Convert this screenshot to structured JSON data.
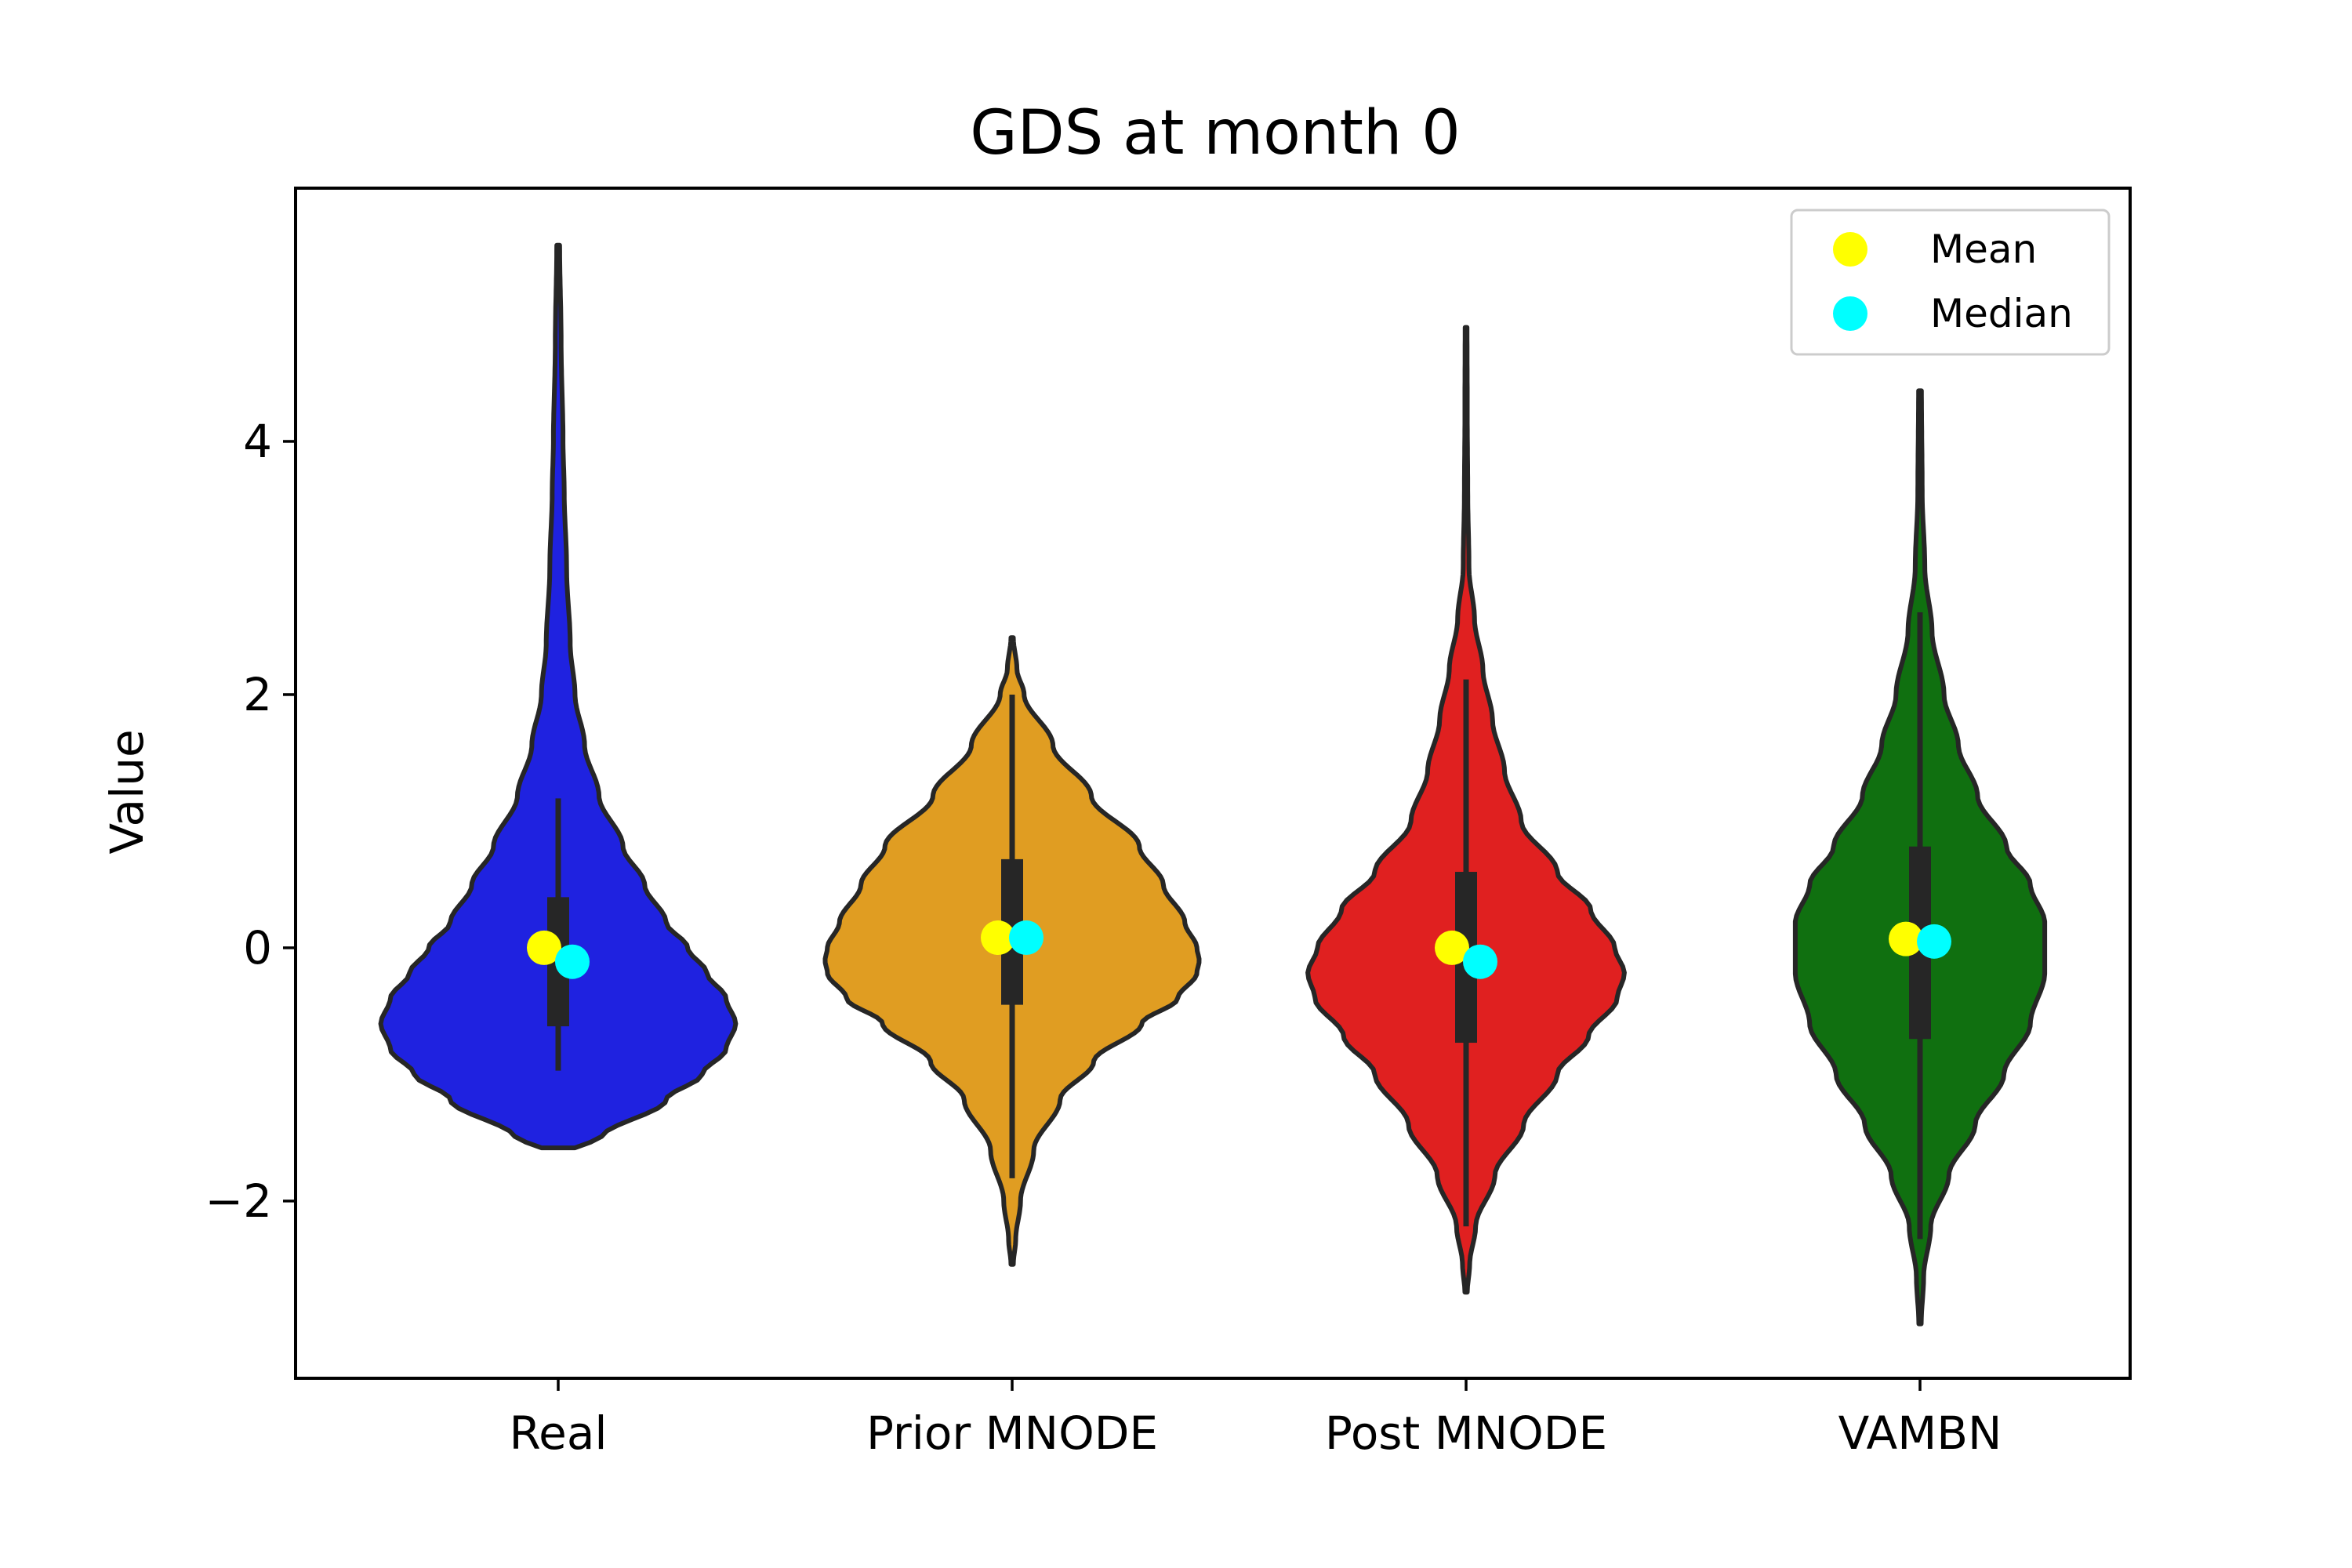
{
  "chart_data": {
    "type": "violin",
    "title": "GDS at month 0",
    "xlabel": "",
    "ylabel": "Value",
    "ylim": [
      -3.4,
      6.0
    ],
    "yticks": [
      -2,
      0,
      2,
      4
    ],
    "ytick_labels": [
      "−2",
      "0",
      "2",
      "4"
    ],
    "grid": false,
    "legend": {
      "placement": "top-right",
      "entries": [
        {
          "label": "Mean",
          "color": "#ffff00"
        },
        {
          "label": "Median",
          "color": "#00ffff"
        }
      ]
    },
    "categories": [
      "Real",
      "Prior MNODE",
      "Post MNODE",
      "VAMBN"
    ],
    "violins": [
      {
        "category": "Real",
        "color": "#1f22e0",
        "min": -1.58,
        "max": 5.55,
        "q1": -0.62,
        "q3": 0.4,
        "whisker_low": -0.97,
        "whisker_high": 1.18,
        "mean": 0.0,
        "median": -0.11,
        "profile": [
          [
            -1.58,
            0.07
          ],
          [
            -1.5,
            0.18
          ],
          [
            -1.2,
            0.45
          ],
          [
            -1.0,
            0.6
          ],
          [
            -0.8,
            0.7
          ],
          [
            -0.6,
            0.74
          ],
          [
            -0.4,
            0.7
          ],
          [
            -0.2,
            0.62
          ],
          [
            0.0,
            0.54
          ],
          [
            0.2,
            0.45
          ],
          [
            0.5,
            0.36
          ],
          [
            0.8,
            0.27
          ],
          [
            1.2,
            0.17
          ],
          [
            1.6,
            0.11
          ],
          [
            2.0,
            0.07
          ],
          [
            2.4,
            0.05
          ],
          [
            3.0,
            0.035
          ],
          [
            3.6,
            0.025
          ],
          [
            4.0,
            0.02
          ],
          [
            4.8,
            0.012
          ],
          [
            5.55,
            0.006
          ]
        ]
      },
      {
        "category": "Prior MNODE",
        "color": "#e09d22",
        "min": -2.5,
        "max": 2.45,
        "q1": -0.45,
        "q3": 0.7,
        "whisker_low": -1.82,
        "whisker_high": 2.0,
        "mean": 0.08,
        "median": 0.08,
        "profile": [
          [
            -2.5,
            0.005
          ],
          [
            -2.3,
            0.015
          ],
          [
            -2.0,
            0.035
          ],
          [
            -1.6,
            0.09
          ],
          [
            -1.2,
            0.2
          ],
          [
            -0.9,
            0.34
          ],
          [
            -0.6,
            0.54
          ],
          [
            -0.4,
            0.69
          ],
          [
            -0.2,
            0.77
          ],
          [
            -0.1,
            0.78
          ],
          [
            0.0,
            0.77
          ],
          [
            0.2,
            0.72
          ],
          [
            0.5,
            0.63
          ],
          [
            0.8,
            0.53
          ],
          [
            1.2,
            0.33
          ],
          [
            1.6,
            0.17
          ],
          [
            2.0,
            0.05
          ],
          [
            2.2,
            0.02
          ],
          [
            2.45,
            0.005
          ]
        ]
      },
      {
        "category": "Post MNODE",
        "color": "#e02020",
        "min": -2.72,
        "max": 4.9,
        "q1": -0.75,
        "q3": 0.6,
        "whisker_low": -2.2,
        "whisker_high": 2.12,
        "mean": 0.0,
        "median": -0.11,
        "profile": [
          [
            -2.72,
            0.005
          ],
          [
            -2.5,
            0.015
          ],
          [
            -2.2,
            0.04
          ],
          [
            -1.8,
            0.12
          ],
          [
            -1.4,
            0.24
          ],
          [
            -1.0,
            0.38
          ],
          [
            -0.7,
            0.51
          ],
          [
            -0.4,
            0.63
          ],
          [
            -0.2,
            0.66
          ],
          [
            0.0,
            0.62
          ],
          [
            0.3,
            0.52
          ],
          [
            0.6,
            0.38
          ],
          [
            1.0,
            0.23
          ],
          [
            1.4,
            0.16
          ],
          [
            1.8,
            0.11
          ],
          [
            2.2,
            0.07
          ],
          [
            2.6,
            0.035
          ],
          [
            3.0,
            0.012
          ],
          [
            3.6,
            0.007
          ],
          [
            4.2,
            0.005
          ],
          [
            4.9,
            0.004
          ]
        ]
      },
      {
        "category": "VAMBN",
        "color": "#107010",
        "min": -2.97,
        "max": 4.4,
        "q1": -0.72,
        "q3": 0.8,
        "whisker_low": -2.3,
        "whisker_high": 2.65,
        "mean": 0.07,
        "median": 0.05,
        "profile": [
          [
            -2.97,
            0.005
          ],
          [
            -2.6,
            0.015
          ],
          [
            -2.2,
            0.045
          ],
          [
            -1.8,
            0.12
          ],
          [
            -1.4,
            0.23
          ],
          [
            -1.0,
            0.35
          ],
          [
            -0.6,
            0.46
          ],
          [
            -0.2,
            0.52
          ],
          [
            0.2,
            0.52
          ],
          [
            0.5,
            0.46
          ],
          [
            0.8,
            0.36
          ],
          [
            1.2,
            0.24
          ],
          [
            1.6,
            0.16
          ],
          [
            2.0,
            0.1
          ],
          [
            2.5,
            0.05
          ],
          [
            3.0,
            0.02
          ],
          [
            3.6,
            0.009
          ],
          [
            4.4,
            0.006
          ]
        ]
      }
    ]
  }
}
